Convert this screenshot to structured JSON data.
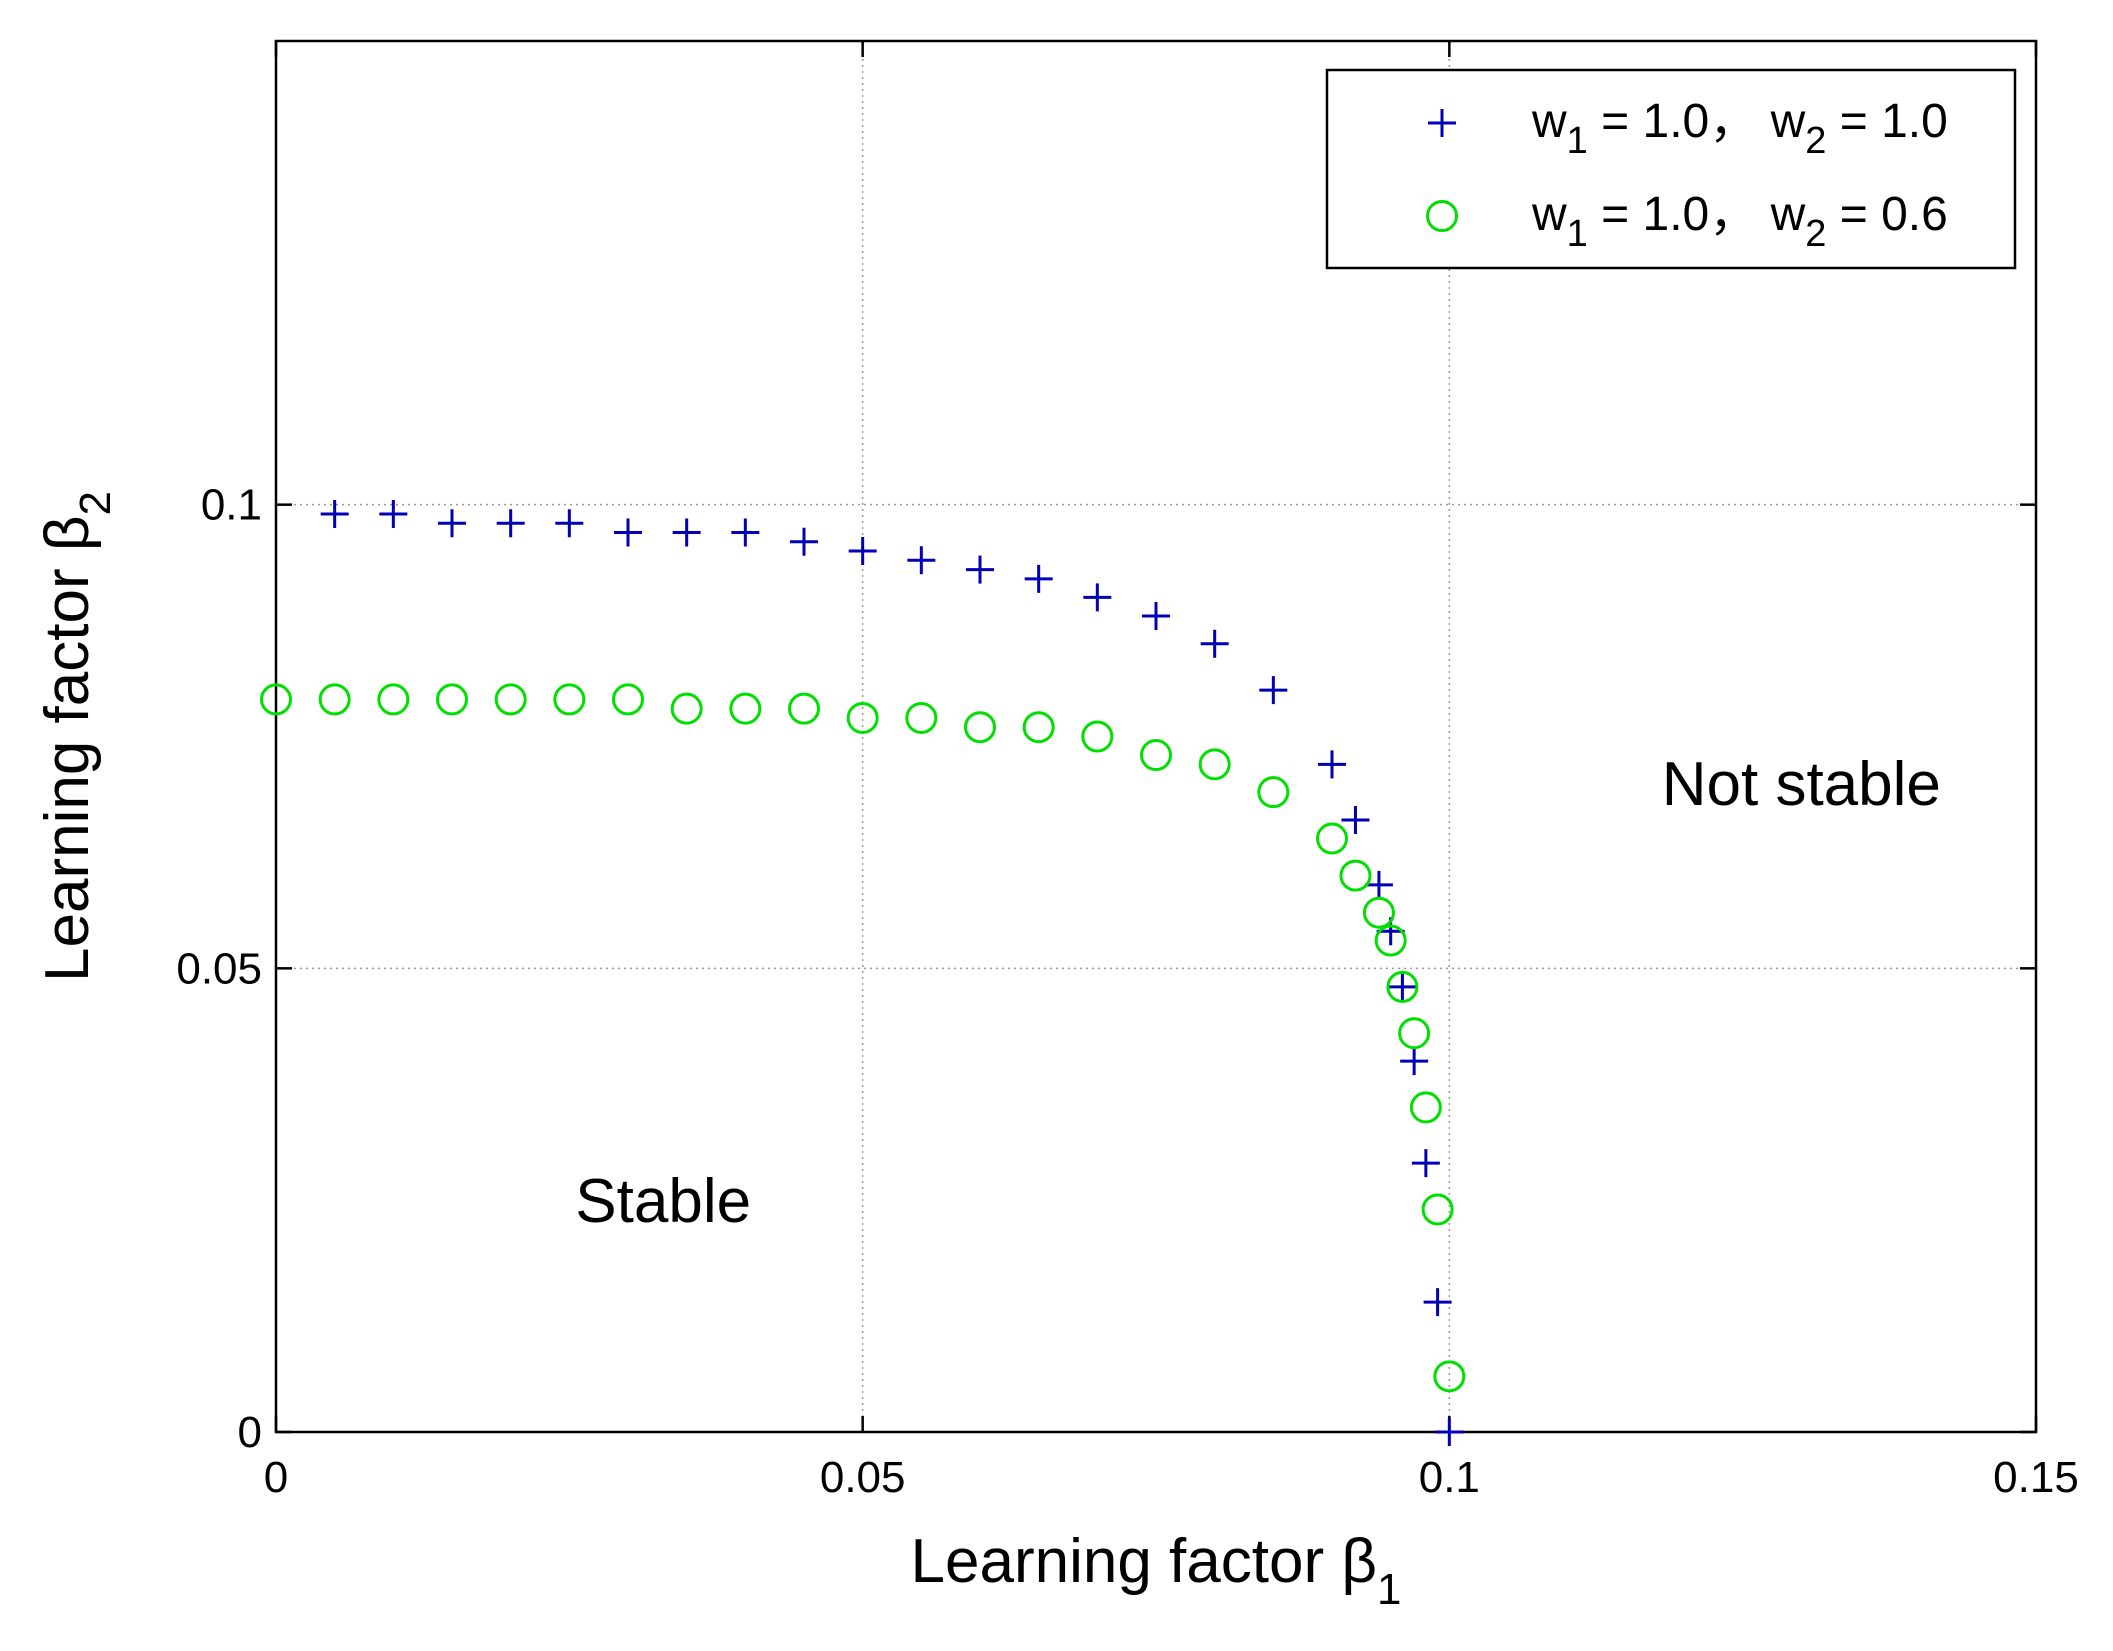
{
  "chart_data": {
    "type": "scatter",
    "xlabel": {
      "text": "Learning factor β",
      "subscript": "1"
    },
    "ylabel": {
      "text": "Learning factor β",
      "subscript": "2"
    },
    "xlim": [
      0,
      0.15
    ],
    "ylim": [
      0,
      0.15
    ],
    "xticks": [
      0,
      0.05,
      0.1,
      0.15
    ],
    "xtick_labels": [
      "0",
      "0.05",
      "0.1",
      "0.15"
    ],
    "yticks": [
      0,
      0.05,
      0.1
    ],
    "ytick_labels": [
      "0",
      "0.05",
      "0.1"
    ],
    "grid": true,
    "legend_position": "top-right",
    "annotations": [
      {
        "text": "Not stable",
        "x": 0.13,
        "y": 0.07
      },
      {
        "text": "Stable",
        "x": 0.033,
        "y": 0.025
      }
    ],
    "series": [
      {
        "name": "w1 = 1.0, w2 = 1.0",
        "legend_parts": [
          "w",
          "1",
          " = 1.0，  w",
          "2",
          " = 1.0"
        ],
        "marker": "plus",
        "color": "#0000b4",
        "x": [
          0.005,
          0.01,
          0.015,
          0.02,
          0.025,
          0.03,
          0.035,
          0.04,
          0.045,
          0.05,
          0.055,
          0.06,
          0.065,
          0.07,
          0.075,
          0.08,
          0.085,
          0.09,
          0.092,
          0.094,
          0.095,
          0.096,
          0.097,
          0.098,
          0.099,
          0.1
        ],
        "y": [
          0.099,
          0.099,
          0.098,
          0.098,
          0.098,
          0.097,
          0.097,
          0.097,
          0.096,
          0.095,
          0.094,
          0.093,
          0.092,
          0.09,
          0.088,
          0.085,
          0.08,
          0.072,
          0.066,
          0.059,
          0.054,
          0.048,
          0.04,
          0.029,
          0.014,
          0.0
        ]
      },
      {
        "name": "w1 = 1.0, w2 = 0.6",
        "legend_parts": [
          "w",
          "1",
          " = 1.0，  w",
          "2",
          " = 0.6"
        ],
        "marker": "circle",
        "color": "#00e000",
        "x": [
          0.0,
          0.005,
          0.01,
          0.015,
          0.02,
          0.025,
          0.03,
          0.035,
          0.04,
          0.045,
          0.05,
          0.055,
          0.06,
          0.065,
          0.07,
          0.075,
          0.08,
          0.085,
          0.09,
          0.092,
          0.094,
          0.095,
          0.096,
          0.097,
          0.098,
          0.099,
          0.1
        ],
        "y": [
          0.079,
          0.079,
          0.079,
          0.079,
          0.079,
          0.079,
          0.079,
          0.078,
          0.078,
          0.078,
          0.077,
          0.077,
          0.076,
          0.076,
          0.075,
          0.073,
          0.072,
          0.069,
          0.064,
          0.06,
          0.056,
          0.053,
          0.048,
          0.043,
          0.035,
          0.024,
          0.006
        ]
      }
    ]
  }
}
